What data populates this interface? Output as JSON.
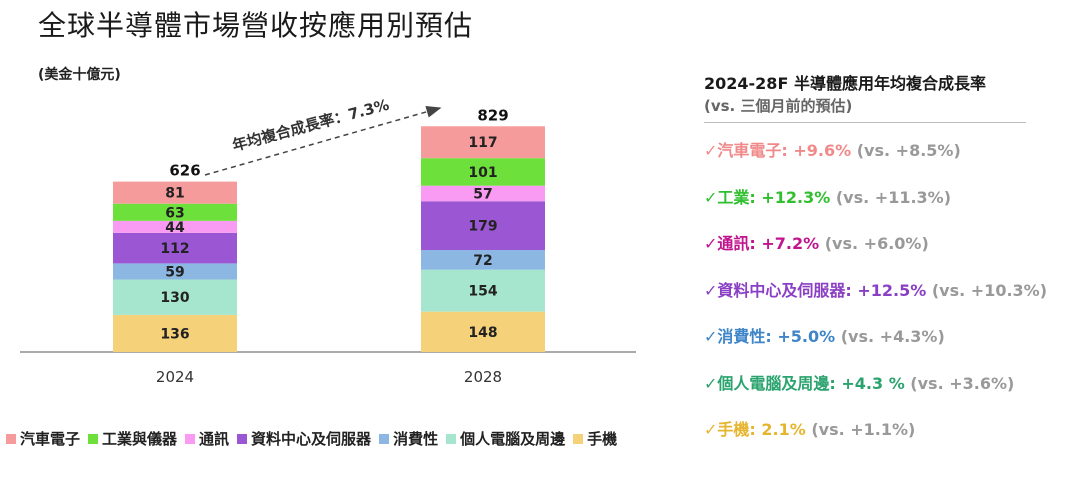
{
  "title": "全球半導體市場營收按應用別預估",
  "unit": "(美金十億元)",
  "colors": {
    "auto": "#f59b9b",
    "industrial": "#6ee03c",
    "comm": "#f99bf2",
    "datacenter": "#9b56d4",
    "consumer": "#8cb7e3",
    "pc": "#a6e6cf",
    "mobile": "#f5d27a",
    "arrow": "#444444",
    "axis": "#555555"
  },
  "chart_data": {
    "type": "bar",
    "stacked": true,
    "categories": [
      "2024",
      "2028"
    ],
    "totals": [
      626,
      829
    ],
    "series": [
      {
        "name": "手機",
        "key": "mobile",
        "values": [
          136,
          148
        ]
      },
      {
        "name": "個人電腦及周邊",
        "key": "pc",
        "values": [
          130,
          154
        ]
      },
      {
        "name": "消費性",
        "key": "consumer",
        "values": [
          59,
          72
        ]
      },
      {
        "name": "資料中心及伺服器",
        "key": "datacenter",
        "values": [
          112,
          179
        ]
      },
      {
        "name": "通訊",
        "key": "comm",
        "values": [
          44,
          57
        ]
      },
      {
        "name": "工業與儀器",
        "key": "industrial",
        "values": [
          63,
          101
        ]
      },
      {
        "name": "汽車電子",
        "key": "auto",
        "values": [
          81,
          117
        ]
      }
    ],
    "annotation": "年均複合成長率：7.3%",
    "legend_position": "bottom"
  },
  "legend": [
    {
      "label": "汽車電子",
      "key": "auto"
    },
    {
      "label": "工業與儀器",
      "key": "industrial"
    },
    {
      "label": "通訊",
      "key": "comm"
    },
    {
      "label": "資料中心及伺服器",
      "key": "datacenter"
    },
    {
      "label": "消費性",
      "key": "consumer"
    },
    {
      "label": "個人電腦及周邊",
      "key": "pc"
    },
    {
      "label": "手機",
      "key": "mobile"
    }
  ],
  "panel": {
    "title": "2024-28F 半導體應用年均複合成長率",
    "subtitle": "(vs. 三個月前的預估)",
    "rows": [
      {
        "check": "✓",
        "name": "汽車電子",
        "sep": ": ",
        "value": "+9.6%",
        "prev": " (vs. +8.5%)",
        "color": "#f08a8a"
      },
      {
        "check": "✓",
        "name": "工業",
        "sep": ": ",
        "value": "+12.3%",
        "prev": " (vs. +11.3%)",
        "color": "#2fbf2f"
      },
      {
        "check": "✓",
        "name": "通訊",
        "sep": ": ",
        "value": "+7.2%",
        "prev": " (vs. +6.0%)",
        "color": "#c0158f"
      },
      {
        "check": "✓",
        "name": "資料中心及伺服器",
        "sep": ": ",
        "value": "+12.5%",
        "prev": " (vs. +10.3%)",
        "color": "#8a3fc4"
      },
      {
        "check": "✓",
        "name": "消費性",
        "sep": ": ",
        "value": "+5.0%",
        "prev": " (vs. +4.3%)",
        "color": "#3f86c9"
      },
      {
        "check": "✓",
        "name": "個人電腦及周邊",
        "sep": ": ",
        "value": "+4.3 %",
        "prev": " (vs. +3.6%)",
        "color": "#2aa36e"
      },
      {
        "check": "✓",
        "name": "手機",
        "sep": ": ",
        "value": "2.1%",
        "prev": " (vs. +1.1%)",
        "color": "#e6b530"
      }
    ]
  }
}
